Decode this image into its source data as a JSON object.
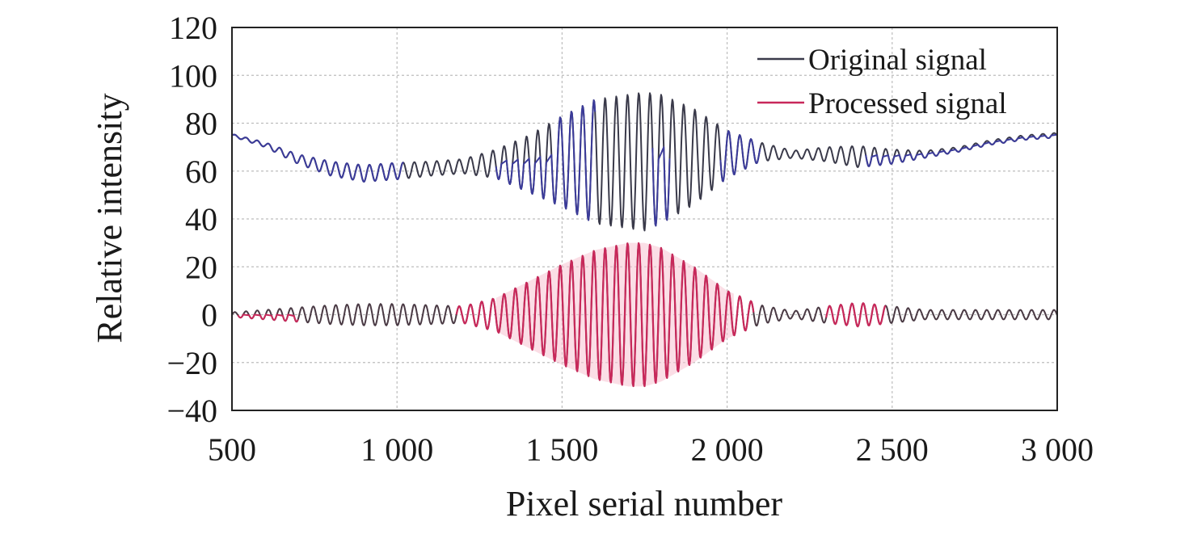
{
  "chart_data": {
    "type": "line",
    "title": "",
    "xlabel": "Pixel serial number",
    "ylabel": "Relative intensity",
    "xlim": [
      500,
      3000
    ],
    "ylim": [
      -40,
      120
    ],
    "x_ticks": [
      500,
      1000,
      1500,
      2000,
      2500,
      3000
    ],
    "x_tick_labels": [
      "500",
      "1 000",
      "1 500",
      "2 000",
      "2 500",
      "3 000"
    ],
    "y_ticks": [
      -40,
      -20,
      0,
      20,
      40,
      60,
      80,
      100,
      120
    ],
    "y_tick_labels": [
      "−40",
      "−20",
      "0",
      "20",
      "40",
      "60",
      "80",
      "100",
      "120"
    ],
    "grid": true,
    "legend_position": "top-right",
    "series": [
      {
        "name": "Original signal",
        "color": "#3a3a4a",
        "highlight_color": "#3b3b9a",
        "x": [
          500,
          600,
          700,
          800,
          900,
          1000,
          1100,
          1200,
          1300,
          1400,
          1500,
          1600,
          1700,
          1750,
          1800,
          1900,
          2000,
          2100,
          2200,
          2300,
          2400,
          2500,
          2600,
          2700,
          2800,
          2900,
          3000
        ],
        "baseline": [
          75,
          71,
          65,
          61,
          59,
          60,
          61,
          62,
          63,
          63,
          64,
          64,
          64,
          64,
          65,
          66,
          67,
          68,
          67,
          67,
          66,
          66,
          67,
          69,
          72,
          74,
          75
        ],
        "amplitude": [
          0.5,
          1,
          2,
          3,
          3.5,
          3.5,
          3,
          3,
          6,
          12,
          19,
          26,
          28,
          29,
          27,
          20,
          10,
          4,
          1.5,
          3,
          4.5,
          3,
          1.5,
          1,
          1,
          1,
          1
        ]
      },
      {
        "name": "Processed signal",
        "color": "#c8285a",
        "fill_color": "#f7c2d2",
        "x": [
          500,
          600,
          700,
          800,
          900,
          1000,
          1100,
          1200,
          1300,
          1400,
          1500,
          1600,
          1700,
          1750,
          1800,
          1900,
          2000,
          2100,
          2200,
          2300,
          2400,
          2500,
          2600,
          2700,
          2800,
          2900,
          3000
        ],
        "baseline": [
          0,
          0,
          0,
          0,
          0,
          0,
          0,
          0,
          0,
          0,
          0,
          0,
          0,
          0,
          0,
          0,
          0,
          0,
          0,
          0,
          0,
          0,
          0,
          0,
          0,
          0,
          0
        ],
        "amplitude": [
          1,
          2,
          3,
          4,
          4.5,
          4.5,
          4,
          3.5,
          7,
          14,
          21,
          27,
          30,
          30,
          28,
          20,
          10,
          4,
          1.5,
          3.5,
          5,
          3.5,
          2,
          2,
          2,
          2,
          2
        ]
      }
    ],
    "period": 34
  }
}
